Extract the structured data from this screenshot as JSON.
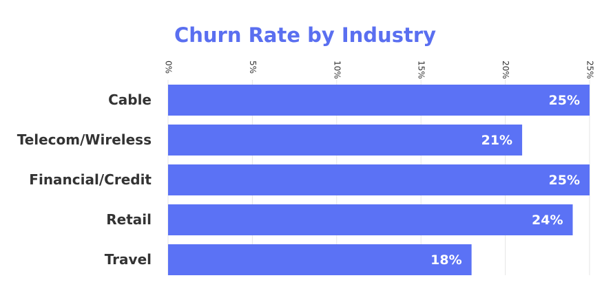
{
  "chart_data": {
    "type": "bar",
    "orientation": "horizontal",
    "title": "Churn Rate by Industry",
    "categories": [
      "Cable",
      "Telecom/Wireless",
      "Financial/Credit",
      "Retail",
      "Travel"
    ],
    "values": [
      25,
      21,
      25,
      24,
      18
    ],
    "value_labels": [
      "25%",
      "21%",
      "25%",
      "24%",
      "18%"
    ],
    "color": "#5b72f5",
    "xlim": [
      0,
      25
    ],
    "xticks": [
      {
        "value": 0,
        "label": "0%"
      },
      {
        "value": 5,
        "label": "5%"
      },
      {
        "value": 10,
        "label": "10%"
      },
      {
        "value": 15,
        "label": "15%"
      },
      {
        "value": 20,
        "label": "20%"
      },
      {
        "value": 25,
        "label": "25%"
      }
    ],
    "grid": true
  }
}
